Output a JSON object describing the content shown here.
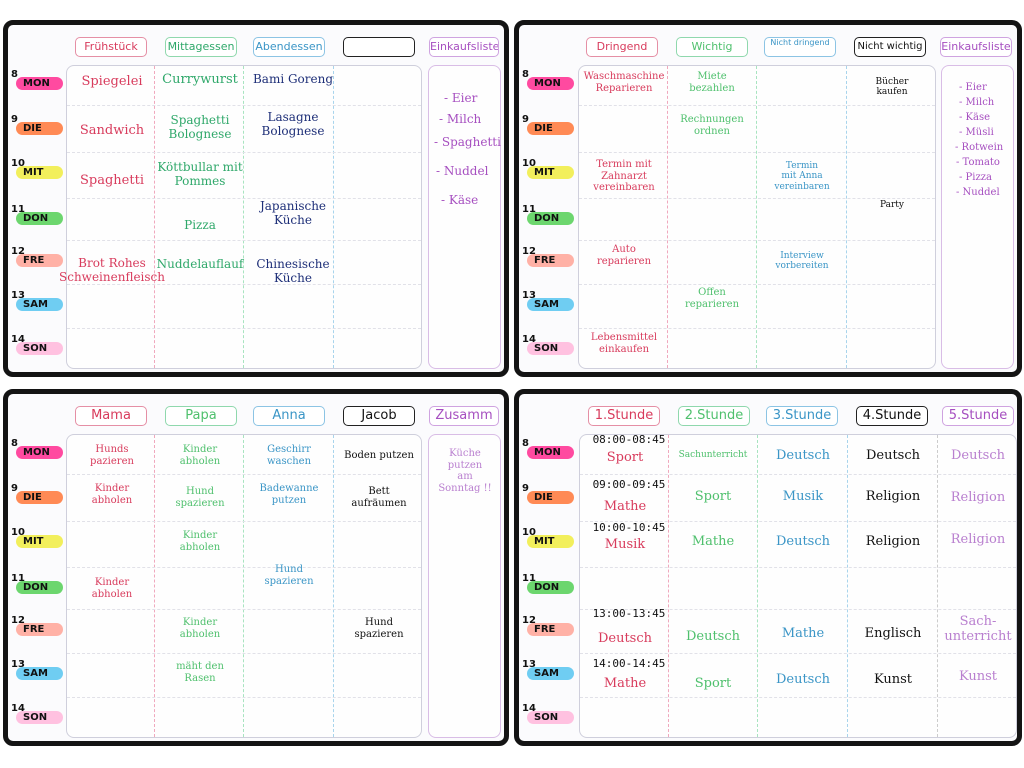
{
  "colors": {
    "red": "#d83b5c",
    "green": "#2fa86a",
    "blue": "#1e2f78",
    "teal": "#3a95c6",
    "black": "#111111",
    "purple": "#a64fc0",
    "frame": "#141414"
  },
  "days": [
    {
      "num": "8",
      "label": "MON",
      "color": "#ff4aa0"
    },
    {
      "num": "9",
      "label": "DIE",
      "color": "#ff8a55"
    },
    {
      "num": "10",
      "label": "MIT",
      "color": "#f2ef5c"
    },
    {
      "num": "11",
      "label": "DON",
      "color": "#6cd66e"
    },
    {
      "num": "12",
      "label": "FRE",
      "color": "#ffb1a6"
    },
    {
      "num": "13",
      "label": "SAM",
      "color": "#6fcdf2"
    },
    {
      "num": "14",
      "label": "SON",
      "color": "#ffc1e0"
    }
  ],
  "boards": {
    "meals": {
      "headers": [
        "Frühstück",
        "Mittagessen",
        "Abendessen",
        "",
        "Einkaufsliste"
      ],
      "cells": {
        "breakfast_mon": "Spiegelei",
        "breakfast_die": "Sandwich",
        "breakfast_mit": "Spaghetti",
        "breakfast_fre_1": "Brot Rohes",
        "breakfast_fre_2": "Schweinenfleisch",
        "lunch_mon": "Currywurst",
        "lunch_die_1": "Spaghetti",
        "lunch_die_2": "Bolognese",
        "lunch_mit_1": "Köttbullar mit",
        "lunch_mit_2": "Pommes",
        "lunch_don": "Pizza",
        "lunch_fre": "Nuddelauflauf",
        "dinner_mon": "Bami Goreng",
        "dinner_die_1": "Lasagne",
        "dinner_die_2": "Bolognese",
        "dinner_don_1": "Japanische",
        "dinner_don_2": "Küche",
        "dinner_fre_1": "Chinesische",
        "dinner_fre_2": "Küche"
      },
      "list": [
        "- Eier",
        "- Milch",
        "- Spaghetti",
        "- Nuddel",
        "- Käse"
      ]
    },
    "priority": {
      "headers": [
        "Dringend",
        "Wichtig",
        "Nicht dringend",
        "Nicht wichtig",
        "Einkaufsliste"
      ],
      "cells": {
        "c1_mon_1": "Waschmaschine",
        "c1_mon_2": "Reparieren",
        "c1_mit_1": "Termin mit",
        "c1_mit_2": "Zahnarzt",
        "c1_mit_3": "vereinbaren",
        "c1_fre_1": "Auto",
        "c1_fre_2": "reparieren",
        "c1_son_1": "Lebensmittel",
        "c1_son_2": "einkaufen",
        "c2_mon_1": "Miete",
        "c2_mon_2": "bezahlen",
        "c2_die_1": "Rechnungen",
        "c2_die_2": "ordnen",
        "c2_sam_1": "Offen",
        "c2_sam_2": "reparieren",
        "c3_mit_1": "Termin",
        "c3_mit_2": "mit Anna",
        "c3_mit_3": "vereinbaren",
        "c3_fre_1": "Interview",
        "c3_fre_2": "vorbereiten",
        "c4_mon_1": "Bücher",
        "c4_mon_2": "kaufen",
        "c4_don": "Party"
      },
      "list": [
        "- Eier",
        "- Milch",
        "- Käse",
        "- Müsli",
        "- Rotwein",
        "- Tomato",
        "- Pizza",
        "- Nuddel"
      ]
    },
    "family": {
      "headers": [
        "Mama",
        "Papa",
        "Anna",
        "Jacob",
        "Zusamm"
      ],
      "cells": {
        "mama_mon_1": "Hunds",
        "mama_mon_2": "pazieren",
        "mama_die_1": "Kinder",
        "mama_die_2": "abholen",
        "mama_don_1": "Kinder",
        "mama_don_2": "abholen",
        "papa_mon_1": "Kinder",
        "papa_mon_2": "abholen",
        "papa_die_1": "Hund",
        "papa_die_2": "spazieren",
        "papa_mit_1": "Kinder",
        "papa_mit_2": "abholen",
        "papa_fre_1": "Kinder",
        "papa_fre_2": "abholen",
        "papa_sam_1": "mäht den",
        "papa_sam_2": "Rasen",
        "anna_mon_1": "Geschirr",
        "anna_mon_2": "waschen",
        "anna_die_1": "Badewanne",
        "anna_die_2": "putzen",
        "anna_don_1": "Hund",
        "anna_don_2": "spazieren",
        "jacob_mon": "Boden putzen",
        "jacob_die_1": "Bett",
        "jacob_die_2": "aufräumen",
        "jacob_fre_1": "Hund",
        "jacob_fre_2": "spazieren"
      },
      "list": [
        "Küche",
        "putzen",
        "am",
        "Sonntag !!"
      ]
    },
    "school": {
      "headers": [
        "1.Stunde",
        "2.Stunde",
        "3.Stunde",
        "4.Stunde",
        "5.Stunde"
      ],
      "times": {
        "mon": "08:00-08:45",
        "die": "09:00-09:45",
        "mit": "10:00-10:45",
        "fre": "13:00-13:45",
        "sam": "14:00-14:45"
      },
      "cells": {
        "s1_mon": "Sport",
        "s1_die": "Mathe",
        "s1_mit": "Musik",
        "s1_fre": "Deutsch",
        "s1_sam": "Mathe",
        "s2_mon": "Sachunterricht",
        "s2_die": "Sport",
        "s2_mit": "Mathe",
        "s2_fre": "Deutsch",
        "s2_sam": "Sport",
        "s3_mon": "Deutsch",
        "s3_die": "Musik",
        "s3_mit": "Deutsch",
        "s3_fre": "Mathe",
        "s3_sam": "Deutsch",
        "s4_mon": "Deutsch",
        "s4_die": "Religion",
        "s4_mit": "Religion",
        "s4_fre": "Englisch",
        "s4_sam": "Kunst",
        "s5_mon": "Deutsch",
        "s5_die": "Religion",
        "s5_mit": "Religion",
        "s5_fre_1": "Sach-",
        "s5_fre_2": "unterricht",
        "s5_sam": "Kunst"
      }
    }
  }
}
